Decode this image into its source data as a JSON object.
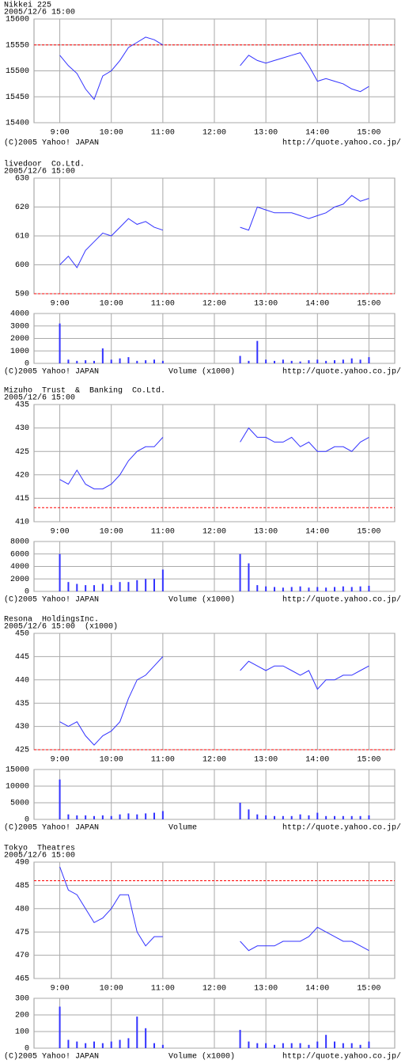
{
  "chart_data": [
    {
      "type": "line",
      "title": "Nikkei 225",
      "timestamp": "2005/12/6 15:00",
      "color": "#3333ff",
      "x": [
        540,
        550,
        560,
        570,
        580,
        590,
        600,
        610,
        620,
        630,
        640,
        650,
        660,
        700,
        750,
        760,
        770,
        780,
        790,
        800,
        810,
        820,
        830,
        840,
        850,
        860,
        870,
        880,
        890,
        900
      ],
      "values": [
        15530,
        15510,
        15495,
        15465,
        15445,
        15490,
        15500,
        15520,
        15545,
        15555,
        15565,
        15560,
        15550,
        null,
        15510,
        15530,
        15520,
        15515,
        15520,
        15525,
        15530,
        15535,
        15510,
        15480,
        15485,
        15480,
        15475,
        15465,
        15460,
        15470
      ],
      "xlim": [
        510,
        930
      ],
      "xticks": [
        {
          "value": 540,
          "label": "9:00"
        },
        {
          "value": 600,
          "label": "10:00"
        },
        {
          "value": 660,
          "label": "11:00"
        },
        {
          "value": 720,
          "label": "12:00"
        },
        {
          "value": 780,
          "label": "13:00"
        },
        {
          "value": 840,
          "label": "14:00"
        },
        {
          "value": 900,
          "label": "15:00"
        }
      ],
      "ylim": [
        15400,
        15600
      ],
      "yticks": [
        15400,
        15450,
        15500,
        15550,
        15600
      ],
      "reference_line": 15550,
      "reference_color": "#ff0000",
      "grid": true,
      "copyright": "(C)2005 Yahoo! JAPAN",
      "url": "http://quote.yahoo.co.jp/"
    },
    {
      "type": "line",
      "title": "livedoor  Co.Ltd.",
      "timestamp": "2005/12/6 15:00",
      "color": "#3333ff",
      "x": [
        540,
        550,
        560,
        570,
        580,
        590,
        600,
        610,
        620,
        630,
        640,
        650,
        660,
        700,
        750,
        760,
        770,
        780,
        790,
        800,
        810,
        820,
        830,
        840,
        850,
        860,
        870,
        880,
        890,
        900
      ],
      "values": [
        600,
        603,
        599,
        605,
        608,
        611,
        610,
        613,
        616,
        614,
        615,
        613,
        612,
        null,
        613,
        612,
        620,
        619,
        618,
        618,
        618,
        617,
        616,
        617,
        618,
        620,
        621,
        624,
        622,
        623
      ],
      "xlim": [
        510,
        930
      ],
      "xticks": [
        {
          "value": 540,
          "label": "9:00"
        },
        {
          "value": 600,
          "label": "10:00"
        },
        {
          "value": 660,
          "label": "11:00"
        },
        {
          "value": 720,
          "label": "12:00"
        },
        {
          "value": 780,
          "label": "13:00"
        },
        {
          "value": 840,
          "label": "14:00"
        },
        {
          "value": 900,
          "label": "15:00"
        }
      ],
      "ylim": [
        590,
        630
      ],
      "yticks": [
        590,
        600,
        610,
        620,
        630
      ],
      "reference_line": 590,
      "reference_color": "#ff0000",
      "grid": true,
      "volume": {
        "type": "bar",
        "label": "Volume (x1000)",
        "ylim": [
          0,
          4000
        ],
        "yticks": [
          0,
          1000,
          2000,
          3000,
          4000
        ],
        "values": [
          3200,
          300,
          200,
          250,
          200,
          1200,
          300,
          400,
          500,
          200,
          250,
          300,
          200,
          null,
          600,
          200,
          1800,
          300,
          200,
          300,
          200,
          150,
          250,
          300,
          200,
          250,
          300,
          400,
          300,
          500
        ]
      },
      "copyright": "(C)2005 Yahoo! JAPAN",
      "url": "http://quote.yahoo.co.jp/"
    },
    {
      "type": "line",
      "title": "Mizuho  Trust  &  Banking  Co.Ltd.",
      "timestamp": "2005/12/6 15:00",
      "color": "#3333ff",
      "x": [
        540,
        550,
        560,
        570,
        580,
        590,
        600,
        610,
        620,
        630,
        640,
        650,
        660,
        700,
        750,
        760,
        770,
        780,
        790,
        800,
        810,
        820,
        830,
        840,
        850,
        860,
        870,
        880,
        890,
        900
      ],
      "values": [
        419,
        418,
        421,
        418,
        417,
        417,
        418,
        420,
        423,
        425,
        426,
        426,
        428,
        null,
        427,
        430,
        428,
        428,
        427,
        427,
        428,
        426,
        427,
        425,
        425,
        426,
        426,
        425,
        427,
        428
      ],
      "xlim": [
        510,
        930
      ],
      "xticks": [
        {
          "value": 540,
          "label": "9:00"
        },
        {
          "value": 600,
          "label": "10:00"
        },
        {
          "value": 660,
          "label": "11:00"
        },
        {
          "value": 720,
          "label": "12:00"
        },
        {
          "value": 780,
          "label": "13:00"
        },
        {
          "value": 840,
          "label": "14:00"
        },
        {
          "value": 900,
          "label": "15:00"
        }
      ],
      "ylim": [
        410,
        435
      ],
      "yticks": [
        410,
        415,
        420,
        425,
        430,
        435
      ],
      "reference_line": 413,
      "reference_color": "#ff0000",
      "grid": true,
      "volume": {
        "type": "bar",
        "label": "Volume (x1000)",
        "ylim": [
          0,
          8000
        ],
        "yticks": [
          0,
          2000,
          4000,
          6000,
          8000
        ],
        "values": [
          6000,
          1500,
          1200,
          1000,
          1000,
          1200,
          1000,
          1500,
          1500,
          1800,
          2000,
          2000,
          3500,
          null,
          6000,
          4500,
          1000,
          800,
          700,
          600,
          700,
          800,
          600,
          700,
          600,
          700,
          800,
          700,
          800,
          900
        ]
      },
      "copyright": "(C)2005 Yahoo! JAPAN",
      "url": "http://quote.yahoo.co.jp/"
    },
    {
      "type": "line",
      "title": "Resona  HoldingsInc.",
      "timestamp": "2005/12/6 15:00",
      "note": "(x1000)",
      "color": "#3333ff",
      "x": [
        540,
        550,
        560,
        570,
        580,
        590,
        600,
        610,
        620,
        630,
        640,
        650,
        660,
        700,
        750,
        760,
        770,
        780,
        790,
        800,
        810,
        820,
        830,
        840,
        850,
        860,
        870,
        880,
        890,
        900
      ],
      "values": [
        431,
        430,
        431,
        428,
        426,
        428,
        429,
        431,
        436,
        440,
        441,
        443,
        445,
        null,
        442,
        444,
        443,
        442,
        443,
        443,
        442,
        441,
        442,
        438,
        440,
        440,
        441,
        441,
        442,
        443
      ],
      "xlim": [
        510,
        930
      ],
      "xticks": [
        {
          "value": 540,
          "label": "9:00"
        },
        {
          "value": 600,
          "label": "10:00"
        },
        {
          "value": 660,
          "label": "11:00"
        },
        {
          "value": 720,
          "label": "12:00"
        },
        {
          "value": 780,
          "label": "13:00"
        },
        {
          "value": 840,
          "label": "14:00"
        },
        {
          "value": 900,
          "label": "15:00"
        }
      ],
      "ylim": [
        425,
        450
      ],
      "yticks": [
        425,
        430,
        435,
        440,
        445,
        450
      ],
      "reference_line": 425,
      "reference_color": "#ff0000",
      "grid": true,
      "volume": {
        "type": "bar",
        "label": "Volume",
        "ylim": [
          0,
          15000
        ],
        "yticks": [
          0,
          5000,
          10000,
          15000
        ],
        "values": [
          12000,
          1500,
          1200,
          1200,
          1000,
          1200,
          1000,
          1500,
          1800,
          1500,
          1800,
          2000,
          2500,
          null,
          5000,
          3000,
          1500,
          1200,
          1000,
          1000,
          1000,
          1500,
          1200,
          2000,
          1000,
          1000,
          1000,
          1000,
          1000,
          1200
        ]
      },
      "copyright": "(C)2005 Yahoo! JAPAN",
      "url": "http://quote.yahoo.co.jp/"
    },
    {
      "type": "line",
      "title": "Tokyo  Theatres",
      "timestamp": "2005/12/6 15:00",
      "color": "#3333ff",
      "x": [
        540,
        550,
        560,
        570,
        580,
        590,
        600,
        610,
        620,
        630,
        640,
        650,
        660,
        700,
        750,
        760,
        770,
        780,
        790,
        800,
        810,
        820,
        830,
        840,
        850,
        860,
        870,
        880,
        890,
        900
      ],
      "values": [
        489,
        484,
        483,
        480,
        477,
        478,
        480,
        483,
        483,
        475,
        472,
        474,
        474,
        null,
        473,
        471,
        472,
        472,
        472,
        473,
        473,
        473,
        474,
        476,
        475,
        474,
        473,
        473,
        472,
        471
      ],
      "xlim": [
        510,
        930
      ],
      "xticks": [
        {
          "value": 540,
          "label": "9:00"
        },
        {
          "value": 600,
          "label": "10:00"
        },
        {
          "value": 660,
          "label": "11:00"
        },
        {
          "value": 720,
          "label": "12:00"
        },
        {
          "value": 780,
          "label": "13:00"
        },
        {
          "value": 840,
          "label": "14:00"
        },
        {
          "value": 900,
          "label": "15:00"
        }
      ],
      "ylim": [
        465,
        490
      ],
      "yticks": [
        465,
        470,
        475,
        480,
        485,
        490
      ],
      "reference_line": 486,
      "reference_color": "#ff0000",
      "grid": true,
      "volume": {
        "type": "bar",
        "label": "Volume (x1000)",
        "ylim": [
          0,
          300
        ],
        "yticks": [
          0,
          100,
          200,
          300
        ],
        "values": [
          250,
          50,
          40,
          30,
          40,
          30,
          40,
          50,
          60,
          190,
          120,
          30,
          20,
          null,
          110,
          40,
          30,
          30,
          20,
          30,
          30,
          30,
          20,
          40,
          80,
          40,
          30,
          30,
          20,
          40
        ]
      },
      "copyright": "(C)2005 Yahoo! JAPAN",
      "url": "http://quote.yahoo.co.jp/"
    }
  ]
}
